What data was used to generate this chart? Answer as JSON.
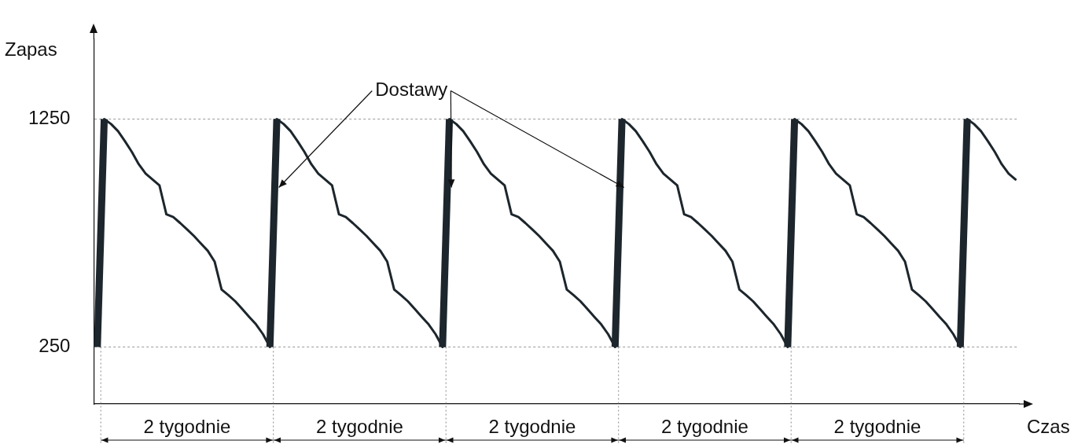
{
  "chart_data": {
    "type": "line",
    "ylabel": "Zapas",
    "xlabel": "Czas",
    "categories": [
      null,
      null,
      null,
      null,
      null,
      null,
      null,
      null,
      null,
      null,
      null,
      null,
      null,
      null,
      null,
      null,
      null,
      null,
      null,
      null,
      null,
      null,
      null,
      null,
      null,
      null,
      null,
      null,
      null,
      null,
      null,
      null,
      null,
      null,
      null,
      null,
      null,
      null,
      null,
      null,
      null,
      null,
      null,
      null,
      null,
      null,
      null,
      null,
      null,
      null,
      null,
      null,
      null,
      null,
      null,
      null,
      null,
      null,
      null,
      null,
      null,
      null,
      null,
      null,
      null,
      null,
      null,
      null,
      null,
      null,
      null,
      null,
      null,
      null,
      null,
      null,
      null,
      null,
      null,
      null,
      null,
      null,
      null,
      null,
      null,
      null,
      null,
      null,
      null,
      null,
      null,
      null,
      null,
      null,
      null,
      null,
      null,
      null,
      null,
      null,
      null,
      null,
      null,
      null,
      null,
      null,
      null,
      null,
      null,
      null,
      null,
      null,
      null,
      null,
      null,
      null,
      null,
      null,
      null,
      null,
      null,
      null,
      null,
      null,
      null,
      null,
      null,
      null,
      null,
      null,
      null,
      null,
      null,
      null
    ],
    "ylim": [
      0,
      1600
    ],
    "yticks": [
      250,
      1250
    ],
    "tick_labels": "y",
    "grid": "y",
    "legend": false,
    "marker": "none",
    "line_style": "solid",
    "series": [
      {
        "color": "#1c262c",
        "values": [
          250,
          1250,
          1228,
          1197,
          1153,
          1106,
          1052,
          1011,
          985,
          959,
          832,
          820,
          794,
          766,
          737,
          704,
          672,
          624,
          502,
          477,
          450,
          416,
          382,
          349,
          306,
          250,
          1250,
          1228,
          1197,
          1153,
          1106,
          1052,
          1011,
          985,
          959,
          832,
          820,
          794,
          766,
          737,
          704,
          672,
          624,
          502,
          477,
          450,
          416,
          382,
          349,
          306,
          250,
          1250,
          1228,
          1197,
          1153,
          1106,
          1052,
          1011,
          985,
          959,
          832,
          820,
          794,
          766,
          737,
          704,
          672,
          624,
          502,
          477,
          450,
          416,
          382,
          349,
          306,
          250,
          1250,
          1228,
          1197,
          1153,
          1106,
          1052,
          1011,
          985,
          959,
          832,
          820,
          794,
          766,
          737,
          704,
          672,
          624,
          502,
          477,
          450,
          416,
          382,
          349,
          306,
          250,
          1250,
          1228,
          1197,
          1153,
          1106,
          1052,
          1011,
          985,
          959,
          832,
          820,
          794,
          766,
          737,
          704,
          672,
          624,
          502,
          477,
          450,
          416,
          382,
          349,
          306,
          250,
          1250,
          1228,
          1197,
          1153,
          1106,
          1052,
          1011,
          985
        ]
      }
    ],
    "annotations": [
      "Dostawy",
      "2 tygodnie",
      "2 tygodnie",
      "2 tygodnie",
      "2 tygodnie",
      "2 tygodnie"
    ]
  }
}
